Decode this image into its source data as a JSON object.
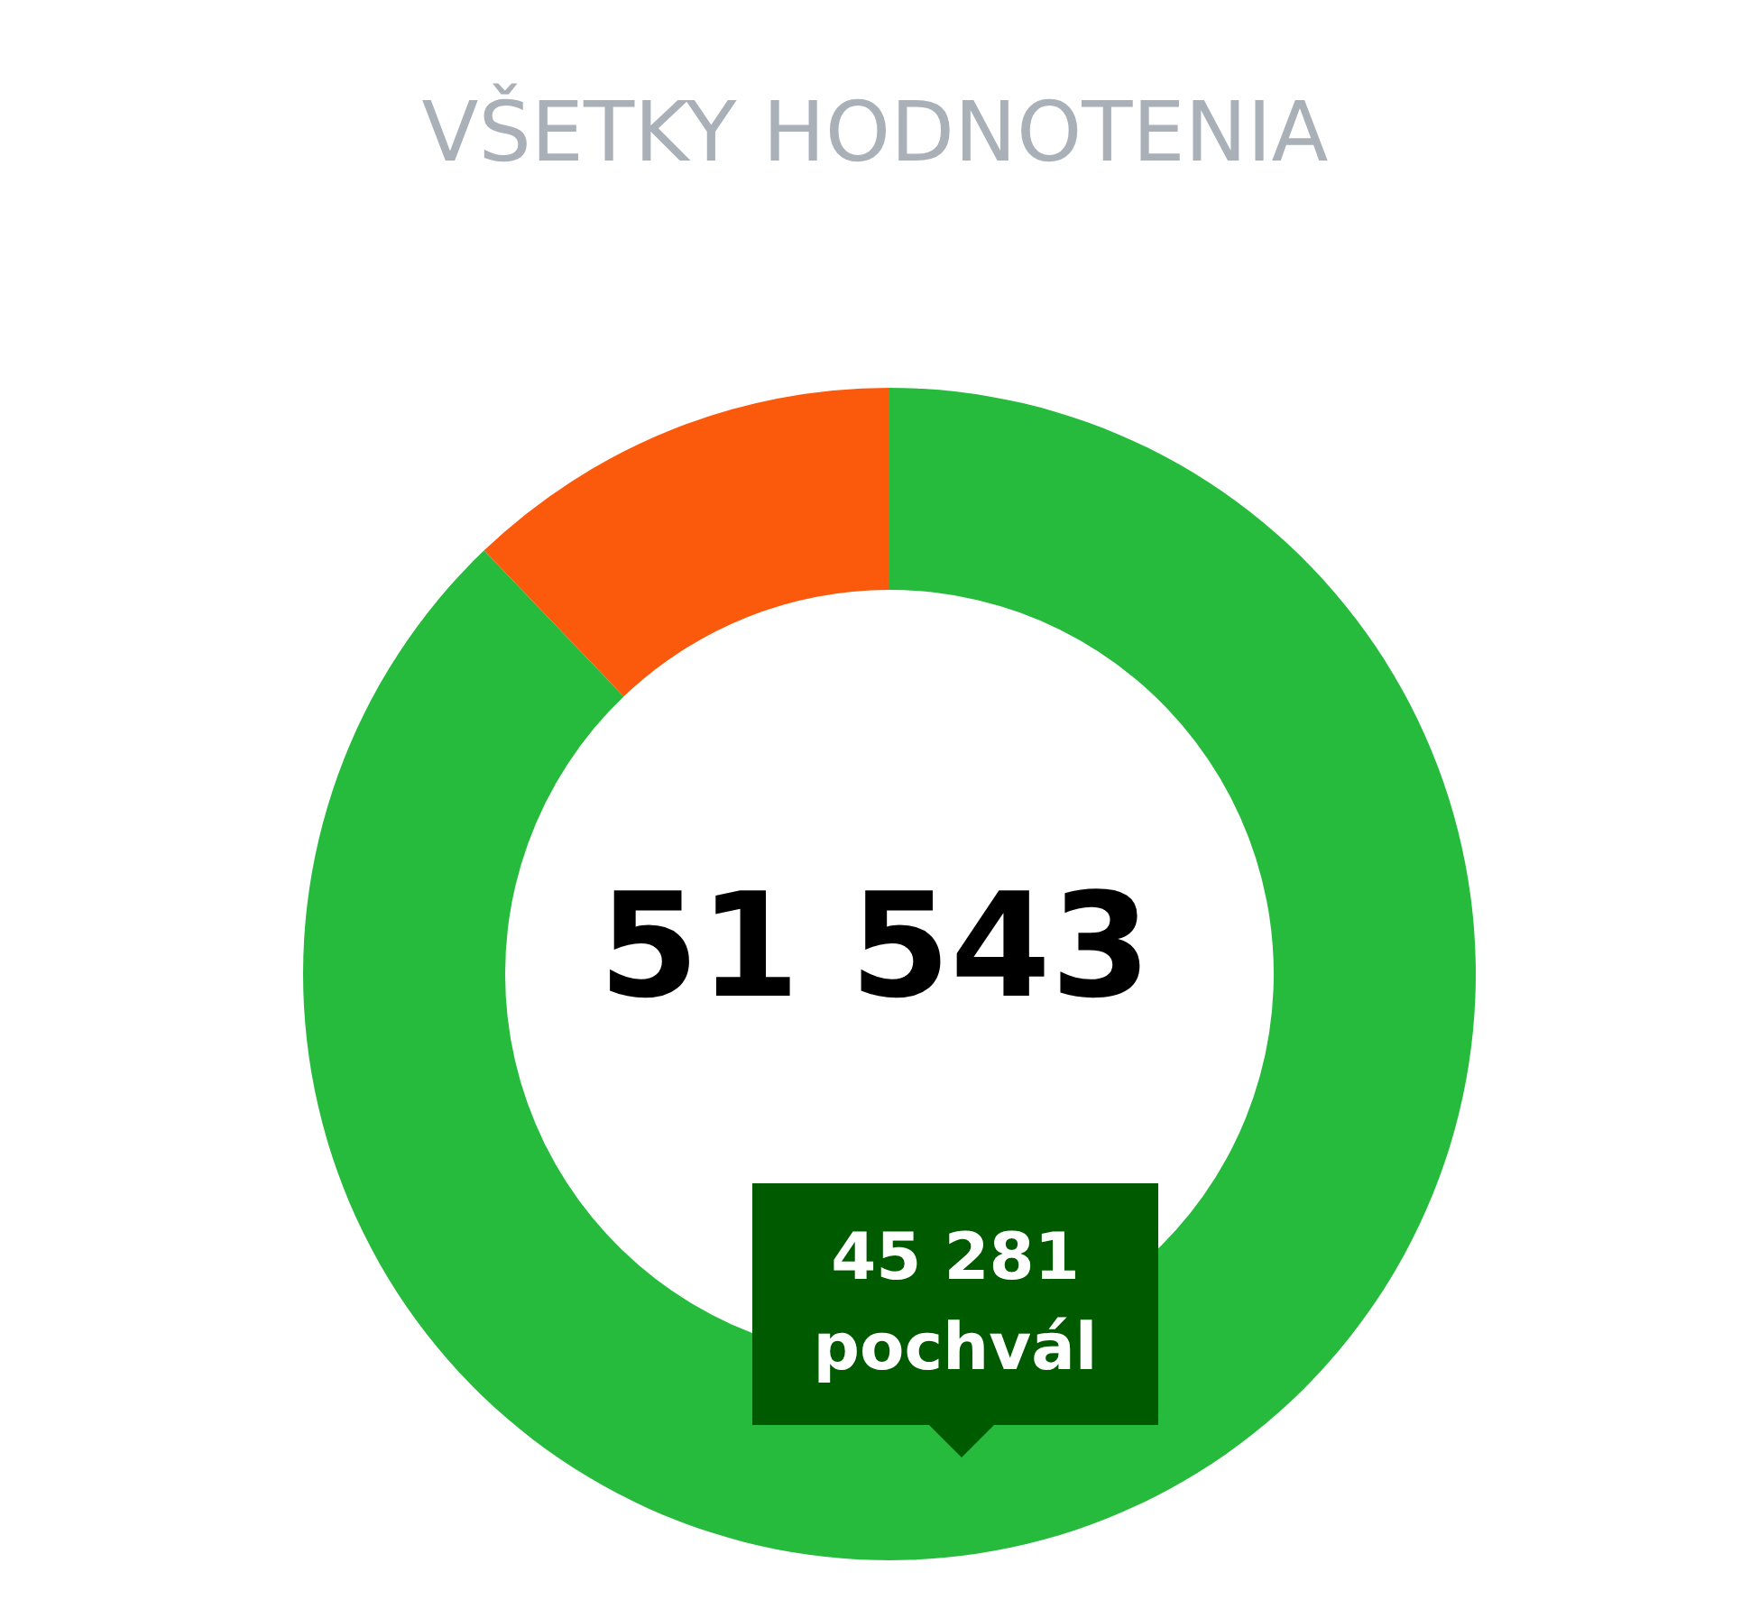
{
  "chart_data": {
    "type": "donut",
    "title": "VŠETKY HODNOTENIA",
    "categories": [
      "pochvál",
      null
    ],
    "values": [
      45281,
      6262
    ],
    "colors": [
      "#27bb3e",
      "#fb5a0c"
    ],
    "value_labels": [
      "45 281",
      null
    ],
    "annotations": [
      "51 543"
    ]
  }
}
